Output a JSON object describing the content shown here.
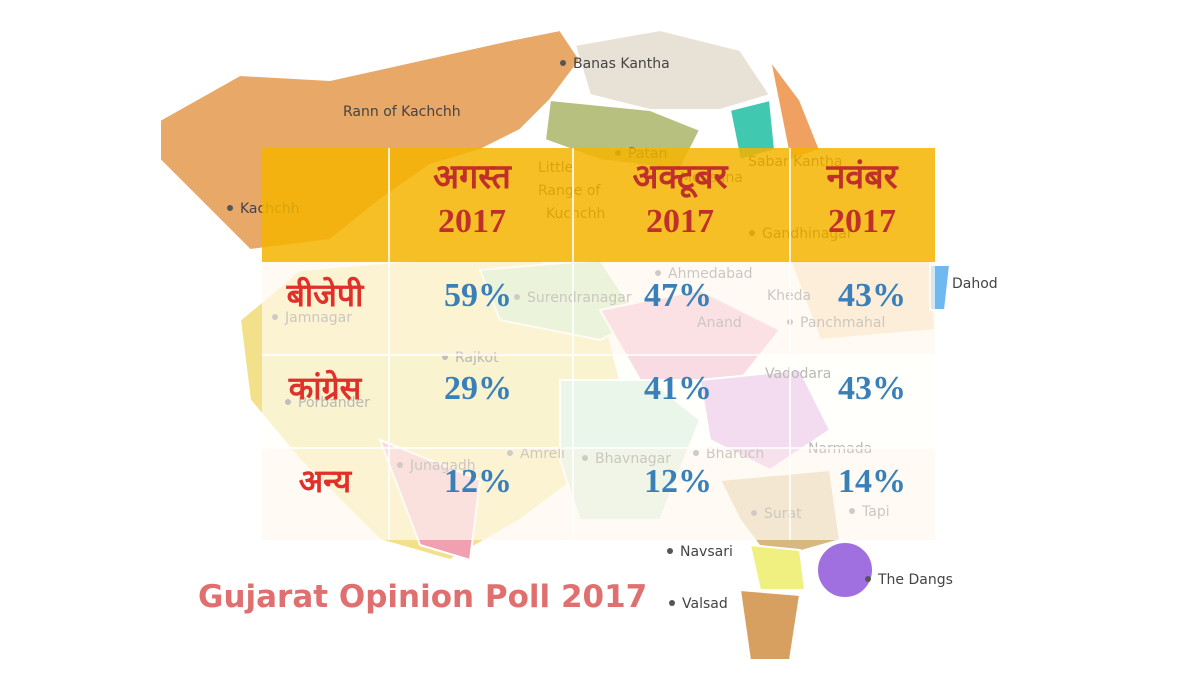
{
  "map_labels": [
    "Banas Kantha",
    "Rann of Kachchh",
    "Kachchh",
    "Little",
    "Range of",
    "Kuchchh",
    "Patan",
    "Sabar Kantha",
    "Mehsana",
    "Gandhinagar",
    "Ahmedabad",
    "Dahod",
    "Surendranagar",
    "Kheda",
    "Jamnagar",
    "Anand",
    "Panchmahal",
    "Rajkot",
    "Vadodara",
    "Porbander",
    "Amreli",
    "Bhavnagar",
    "Bharuch",
    "Narmada",
    "Junagadh",
    "Surat",
    "Tapi",
    "Navsari",
    "The Dangs",
    "Valsad"
  ],
  "title": "Gujarat Opinion Poll 2017",
  "table": {
    "header": [
      [
        "अगस्त",
        "2017"
      ],
      [
        "अक्टूबर",
        "2017"
      ],
      [
        "नवंबर",
        "2017"
      ]
    ],
    "rows": [
      [
        "बीजेपी",
        "59%",
        "47%",
        "43%"
      ],
      [
        "कांग्रेस",
        "29%",
        "41%",
        "43%"
      ],
      [
        "अन्य",
        "12%",
        "12%",
        "14%"
      ]
    ]
  }
}
